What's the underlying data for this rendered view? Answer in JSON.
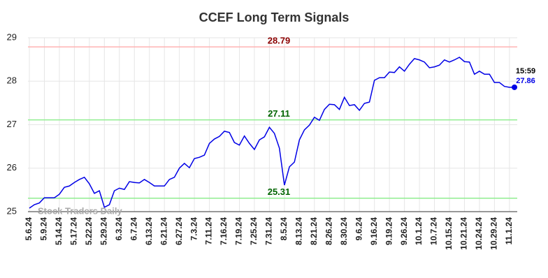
{
  "chart_data": {
    "type": "line",
    "title": "CCEF Long Term Signals",
    "categories": [
      "5.6.24",
      null,
      null,
      "5.9.24",
      null,
      null,
      "5.14.24",
      null,
      null,
      "5.17.24",
      null,
      null,
      "5.22.24",
      null,
      null,
      "5.29.24",
      null,
      null,
      "6.3.24",
      null,
      null,
      "6.7.24",
      null,
      null,
      "6.13.24",
      null,
      null,
      "6.21.24",
      null,
      null,
      "6.27.24",
      null,
      null,
      "7.3.24",
      null,
      null,
      "7.11.24",
      null,
      null,
      "7.16.24",
      null,
      null,
      "7.19.24",
      null,
      null,
      "7.25.24",
      null,
      null,
      "7.31.24",
      null,
      null,
      "8.5.24",
      null,
      null,
      "8.13.24",
      null,
      null,
      "8.21.24",
      null,
      null,
      "8.26.24",
      null,
      null,
      "8.30.24",
      null,
      null,
      "9.6.24",
      null,
      null,
      "9.16.24",
      null,
      null,
      "9.19.24",
      null,
      null,
      "9.26.24",
      null,
      null,
      "10.1.24",
      null,
      null,
      "10.7.24",
      null,
      null,
      "10.15.24",
      null,
      null,
      "10.21.24",
      null,
      null,
      "10.24.24",
      null,
      null,
      "10.29.24",
      null,
      null,
      "11.1.24",
      null
    ],
    "series": [
      {
        "color": "#0000e6",
        "values": [
          25.08,
          25.16,
          25.2,
          25.32,
          25.32,
          25.32,
          25.4,
          25.56,
          25.59,
          25.67,
          25.74,
          25.79,
          25.64,
          25.42,
          25.48,
          25.1,
          25.16,
          25.48,
          25.54,
          25.51,
          25.69,
          25.67,
          25.66,
          25.74,
          25.67,
          25.59,
          25.59,
          25.59,
          25.74,
          25.79,
          26.0,
          26.11,
          26.01,
          26.22,
          26.25,
          26.3,
          26.57,
          26.67,
          26.73,
          26.85,
          26.82,
          26.59,
          26.53,
          26.74,
          26.57,
          26.43,
          26.65,
          26.72,
          26.94,
          26.8,
          26.46,
          25.61,
          26.03,
          26.14,
          26.65,
          26.88,
          26.99,
          27.17,
          27.1,
          27.35,
          27.47,
          27.46,
          27.35,
          27.63,
          27.44,
          27.46,
          27.33,
          27.49,
          27.52,
          28.02,
          28.08,
          28.08,
          28.21,
          28.2,
          28.33,
          28.23,
          28.39,
          28.52,
          28.49,
          28.44,
          28.31,
          28.33,
          28.37,
          28.49,
          28.44,
          28.49,
          28.55,
          28.45,
          28.44,
          28.16,
          28.23,
          28.16,
          28.16,
          27.97,
          27.97,
          27.88,
          27.86,
          27.86
        ]
      }
    ],
    "last_time": "15:59",
    "hlines": [
      {
        "value": 28.79,
        "color": "#ffb3b3",
        "text_color": "#8b0000"
      },
      {
        "value": 27.11,
        "color": "#90ee90",
        "text_color": "#006400"
      },
      {
        "value": 25.31,
        "color": "#90ee90",
        "text_color": "#006400"
      }
    ],
    "watermark": "Stock Traders Daily",
    "ylim": [
      25,
      29
    ],
    "yticks": [
      25,
      26,
      27,
      28,
      29
    ],
    "grid": true
  }
}
